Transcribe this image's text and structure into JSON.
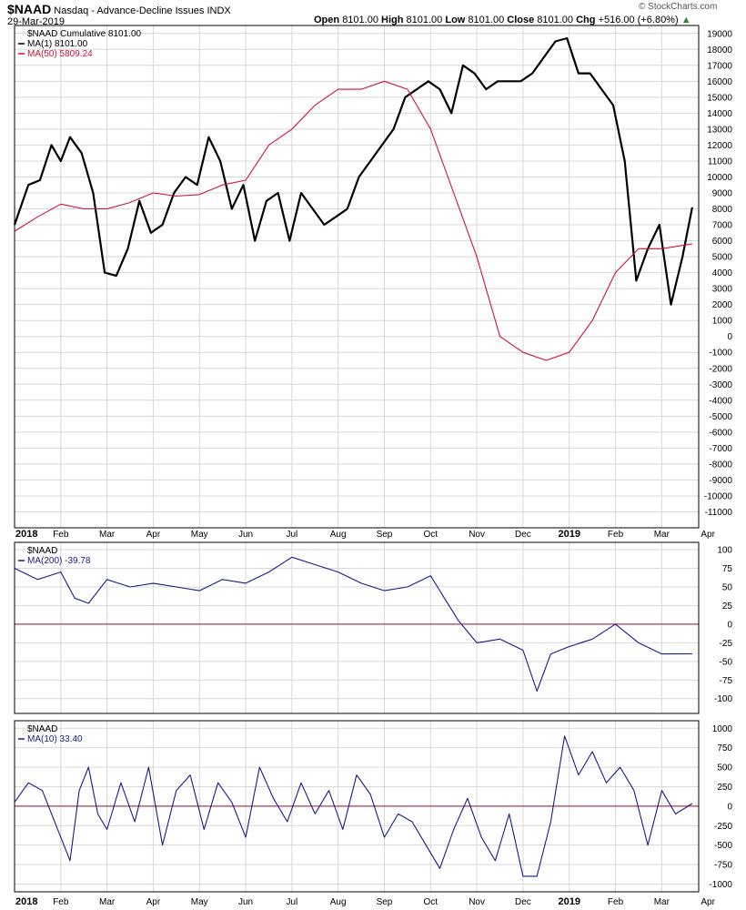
{
  "header": {
    "symbol": "$NAAD",
    "description": "Nasdaq - Advance-Decline Issues",
    "exchange": "INDX",
    "date": "29-Mar-2019",
    "open_label": "Open",
    "open": "8101.00",
    "high_label": "High",
    "high": "8101.00",
    "low_label": "Low",
    "low": "8101.00",
    "close_label": "Close",
    "close": "8101.00",
    "chg_label": "Chg",
    "chg": "+516.00 (+6.80%)",
    "watermark": "© StockCharts.com"
  },
  "colors": {
    "price": "#000000",
    "ma50": "#d0103a",
    "osc": "#1a1a8c",
    "zero": "#a01030",
    "grid": "#d8d8d8"
  },
  "chart_data": [
    {
      "type": "line",
      "panel": "main",
      "legend": [
        "$NAAD Cumulative 8101.00",
        "MA(1) 8101.00",
        "MA(50) 5809.24"
      ],
      "ylim": [
        -12000,
        19500
      ],
      "yticks": [
        19000,
        18000,
        17000,
        16000,
        15000,
        14000,
        13000,
        12000,
        11000,
        10000,
        9000,
        8000,
        7000,
        6000,
        5000,
        4000,
        3000,
        2000,
        1000,
        0,
        -1000,
        -2000,
        -3000,
        -4000,
        -5000,
        -6000,
        -7000,
        -8000,
        -9000,
        -10000,
        -11000
      ],
      "series": [
        {
          "name": "$NAAD Cumulative",
          "x": [
            0,
            0.3,
            0.55,
            0.8,
            1.0,
            1.2,
            1.45,
            1.7,
            1.95,
            2.2,
            2.45,
            2.7,
            2.95,
            3.2,
            3.45,
            3.7,
            3.95,
            4.2,
            4.45,
            4.7,
            4.95,
            5.2,
            5.45,
            5.7,
            5.95,
            6.2,
            6.45,
            6.7,
            6.95,
            7.2,
            7.45,
            7.7,
            7.95,
            8.2,
            8.45,
            8.7,
            8.95,
            9.2,
            9.45,
            9.7,
            9.95,
            10.2,
            10.45,
            10.7,
            10.95,
            11.2,
            11.45,
            11.7,
            11.95,
            12.2,
            12.45,
            12.7,
            12.95,
            13.2,
            13.45,
            13.7,
            13.95,
            14.2,
            14.45,
            14.66
          ],
          "values": [
            7000,
            9500,
            9800,
            12000,
            11000,
            12500,
            11500,
            9000,
            4000,
            3800,
            5500,
            8500,
            6500,
            7000,
            9000,
            10000,
            9500,
            12500,
            11000,
            8000,
            9500,
            6000,
            8500,
            9000,
            6000,
            9000,
            8000,
            7000,
            7500,
            8000,
            10000,
            11000,
            12000,
            13000,
            15000,
            15500,
            16000,
            15500,
            14000,
            17000,
            16500,
            15500,
            16000,
            16000,
            16000,
            16500,
            17500,
            18500,
            18700,
            16500,
            16500,
            15500,
            14500,
            11000,
            3500,
            5500,
            7000,
            2000,
            5000,
            8101
          ],
          "color": "#000000"
        },
        {
          "name": "MA(50)",
          "x": [
            0,
            0.5,
            1,
            1.5,
            2,
            2.5,
            3,
            3.5,
            4,
            4.5,
            5,
            5.5,
            6,
            6.5,
            7,
            7.5,
            8,
            8.5,
            9,
            9.5,
            10,
            10.5,
            11,
            11.5,
            12,
            12.5,
            13,
            13.5,
            14,
            14.66
          ],
          "values": [
            6600,
            7500,
            8300,
            8000,
            8000,
            8400,
            9000,
            8800,
            8900,
            9500,
            9800,
            12000,
            13000,
            14500,
            15500,
            15500,
            16000,
            15500,
            13000,
            9000,
            5000,
            0,
            -1000,
            -1500,
            -1000,
            1000,
            4000,
            5500,
            5500,
            5809
          ],
          "color": "#d0103a"
        }
      ]
    },
    {
      "type": "line",
      "panel": "osc1",
      "legend": [
        "$NAAD",
        "MA(200) -39.78"
      ],
      "ylim": [
        -115,
        105
      ],
      "yticks": [
        100,
        75,
        50,
        25,
        0,
        -25,
        -50,
        -75,
        -100
      ],
      "series": [
        {
          "name": "MA(200)",
          "x": [
            0,
            0.5,
            1,
            1.3,
            1.6,
            2,
            2.5,
            3,
            3.5,
            4,
            4.5,
            5,
            5.5,
            6,
            6.5,
            7,
            7.5,
            8,
            8.5,
            9,
            9.3,
            9.6,
            10,
            10.5,
            11,
            11.3,
            11.6,
            12,
            12.5,
            13,
            13.5,
            14,
            14.66
          ],
          "values": [
            75,
            60,
            70,
            35,
            28,
            60,
            50,
            55,
            50,
            45,
            60,
            55,
            70,
            90,
            80,
            70,
            55,
            45,
            50,
            65,
            35,
            5,
            -25,
            -20,
            -35,
            -90,
            -40,
            -30,
            -20,
            0,
            -25,
            -40,
            -39.78
          ],
          "color": "#1a1a8c"
        }
      ]
    },
    {
      "type": "line",
      "panel": "osc2",
      "legend": [
        "$NAAD",
        "MA(10) 33.40"
      ],
      "ylim": [
        -1100,
        1050
      ],
      "yticks": [
        1000,
        750,
        500,
        250,
        0,
        -250,
        -500,
        -750,
        -1000
      ],
      "series": [
        {
          "name": "MA(10)",
          "x": [
            0,
            0.3,
            0.6,
            1,
            1.2,
            1.4,
            1.6,
            1.8,
            2.0,
            2.3,
            2.6,
            2.9,
            3.2,
            3.5,
            3.8,
            4.1,
            4.4,
            4.7,
            5,
            5.3,
            5.6,
            5.9,
            6.2,
            6.5,
            6.8,
            7.1,
            7.4,
            7.7,
            8,
            8.3,
            8.6,
            8.9,
            9.2,
            9.5,
            9.8,
            10.1,
            10.4,
            10.7,
            11,
            11.3,
            11.6,
            11.9,
            12.2,
            12.5,
            12.8,
            13.1,
            13.4,
            13.7,
            14,
            14.3,
            14.66
          ],
          "values": [
            50,
            300,
            200,
            -400,
            -700,
            200,
            500,
            -100,
            -300,
            300,
            -200,
            500,
            -500,
            200,
            400,
            -300,
            300,
            50,
            -400,
            500,
            100,
            -200,
            300,
            -100,
            200,
            -300,
            400,
            150,
            -400,
            -100,
            -200,
            -500,
            -800,
            -300,
            100,
            -400,
            -700,
            -100,
            -900,
            -900,
            -200,
            900,
            400,
            700,
            300,
            500,
            200,
            -500,
            200,
            -100,
            33.4
          ],
          "color": "#1a1a8c"
        }
      ]
    }
  ],
  "xaxis": {
    "labels": [
      "2018",
      "Feb",
      "Mar",
      "Apr",
      "May",
      "Jun",
      "Jul",
      "Aug",
      "Sep",
      "Oct",
      "Nov",
      "Dec",
      "2019",
      "Feb",
      "Mar",
      "Apr"
    ],
    "bold": [
      "2018",
      "2019"
    ]
  }
}
